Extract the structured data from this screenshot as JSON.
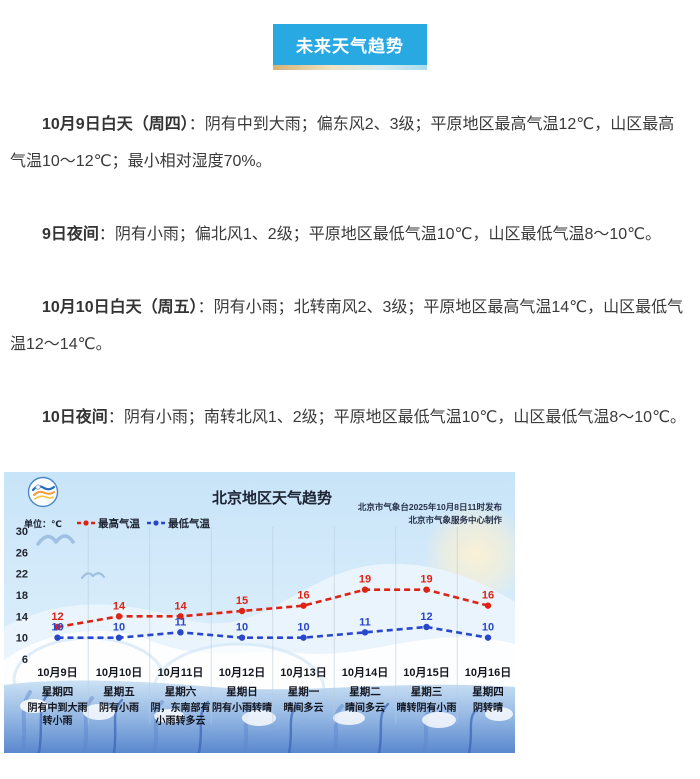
{
  "header": {
    "button_label": "未来天气趋势",
    "button_color": "#29a9e2"
  },
  "paragraphs": [
    {
      "bold": "10月9日白天（周四）",
      "rest": "：阴有中到大雨；偏东风2、3级；平原地区最高气温12℃，山区最高气温10～12℃；最小相对湿度70%。"
    },
    {
      "bold": "9日夜间",
      "rest": "：阴有小雨；偏北风1、2级；平原地区最低气温10℃，山区最低气温8～10℃。"
    },
    {
      "bold": "10月10日白天（周五）",
      "rest": "：阴有小雨；北转南风2、3级；平原地区最高气温14℃，山区最低气温12～14℃。"
    },
    {
      "bold": "10日夜间",
      "rest": "：阴有小雨；南转北风1、2级；平原地区最低气温10℃，山区最低气温8～10℃。"
    }
  ],
  "chart_data": {
    "type": "line",
    "title": "北京地区天气趋势",
    "unit_label": "单位：℃",
    "publish_line1": "北京市气象台2025年10月8日11时发布",
    "publish_line2": "北京市气象服务中心制作",
    "ylim": [
      6,
      30
    ],
    "yticks": [
      30,
      26,
      22,
      18,
      14,
      10,
      6
    ],
    "grid": "vertical",
    "legend_position": "top",
    "legend": [
      {
        "name": "最高气温",
        "color": "#dd2314"
      },
      {
        "name": "最低气温",
        "color": "#2947cc"
      }
    ],
    "categories": [
      {
        "date": "10月9日",
        "weekday": "星期四",
        "weather": [
          "阴有中到大雨",
          "转小雨"
        ]
      },
      {
        "date": "10月10日",
        "weekday": "星期五",
        "weather": [
          "阴有小雨"
        ]
      },
      {
        "date": "10月11日",
        "weekday": "星期六",
        "weather": [
          "阴，东南部有",
          "小雨转多云"
        ]
      },
      {
        "date": "10月12日",
        "weekday": "星期日",
        "weather": [
          "阴有小雨转晴"
        ]
      },
      {
        "date": "10月13日",
        "weekday": "星期一",
        "weather": [
          "晴间多云"
        ]
      },
      {
        "date": "10月14日",
        "weekday": "星期二",
        "weather": [
          "晴间多云"
        ]
      },
      {
        "date": "10月15日",
        "weekday": "星期三",
        "weather": [
          "晴转阴有小雨"
        ]
      },
      {
        "date": "10月16日",
        "weekday": "星期四",
        "weather": [
          "阴转晴"
        ]
      }
    ],
    "series": [
      {
        "name": "最高气温",
        "color": "#dd2314",
        "values": [
          12,
          14,
          14,
          15,
          16,
          19,
          19,
          16
        ]
      },
      {
        "name": "最低气温",
        "color": "#2947cc",
        "values": [
          10,
          10,
          11,
          10,
          10,
          11,
          12,
          10
        ]
      }
    ]
  }
}
